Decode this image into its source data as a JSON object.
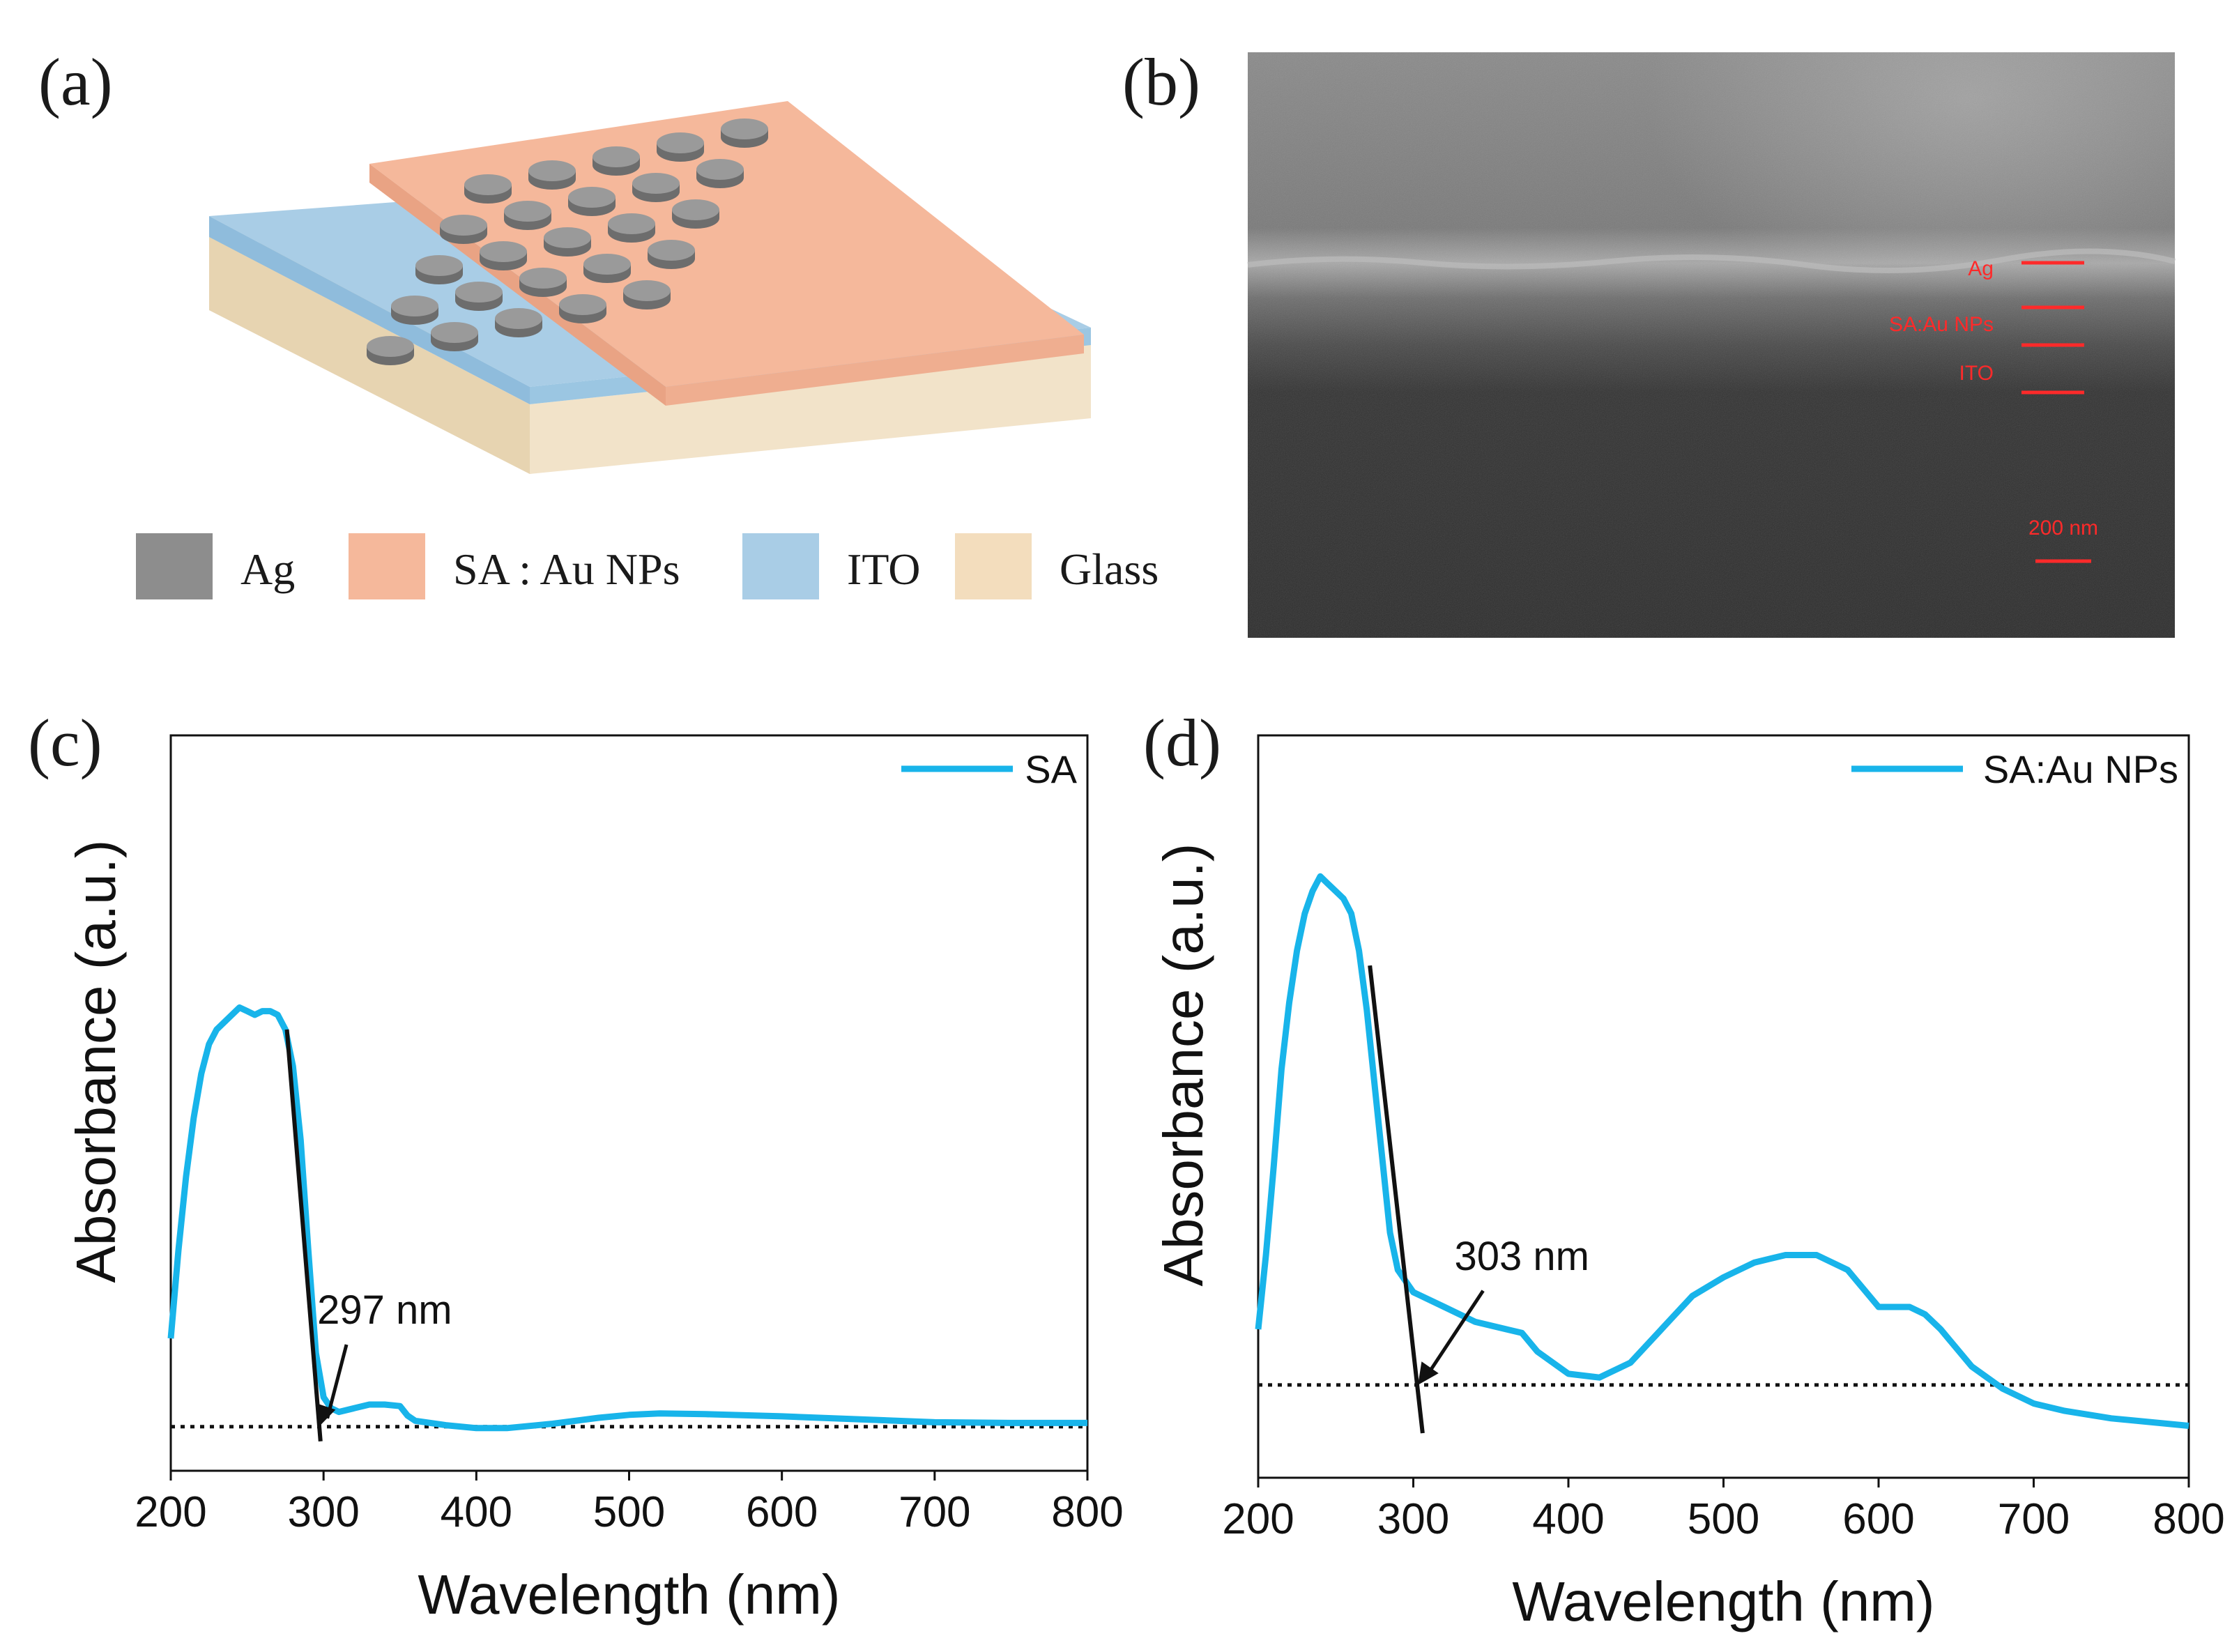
{
  "panels": {
    "a": {
      "label": "(a)",
      "legend": [
        {
          "name": "Ag",
          "color": "#8d8d8d"
        },
        {
          "name": "SA : Au NPs",
          "color": "#f5b89b"
        },
        {
          "name": "ITO",
          "color": "#a9cde6"
        },
        {
          "name": "Glass",
          "color": "#f3ddbd"
        }
      ]
    },
    "b": {
      "label": "(b)",
      "layers": [
        "Ag",
        "SA:Au NPs",
        "ITO"
      ],
      "scale_bar": "200 nm"
    },
    "c": {
      "label": "(c)"
    },
    "d": {
      "label": "(d)"
    }
  },
  "colors": {
    "series": "#18b4ea",
    "annotation": "#111111"
  },
  "chart_data": [
    {
      "type": "line",
      "panel": "c",
      "title": "",
      "xlabel": "Wavelength (nm)",
      "ylabel": "Absorbance (a.u.)",
      "xlim": [
        200,
        800
      ],
      "ylim": [
        0,
        1
      ],
      "xticks": [
        "200",
        "300",
        "400",
        "500",
        "600",
        "700",
        "800"
      ],
      "legend": "SA",
      "series": [
        {
          "name": "SA",
          "x": [
            200,
            205,
            210,
            215,
            220,
            225,
            230,
            235,
            240,
            245,
            250,
            255,
            260,
            265,
            270,
            275,
            280,
            285,
            290,
            295,
            300,
            305,
            310,
            320,
            330,
            340,
            350,
            355,
            360,
            380,
            400,
            420,
            450,
            480,
            500,
            520,
            550,
            600,
            650,
            700,
            750,
            800
          ],
          "y": [
            0.18,
            0.3,
            0.4,
            0.48,
            0.54,
            0.58,
            0.6,
            0.61,
            0.62,
            0.63,
            0.625,
            0.62,
            0.625,
            0.625,
            0.62,
            0.6,
            0.55,
            0.45,
            0.3,
            0.16,
            0.1,
            0.085,
            0.08,
            0.085,
            0.09,
            0.09,
            0.088,
            0.075,
            0.068,
            0.062,
            0.058,
            0.058,
            0.064,
            0.072,
            0.076,
            0.078,
            0.077,
            0.074,
            0.07,
            0.066,
            0.065,
            0.065
          ]
        }
      ],
      "baseline_y": 0.06,
      "tangent": {
        "x": [
          276,
          298
        ],
        "y": [
          0.6,
          0.04
        ]
      },
      "annotation": {
        "text": "297 nm",
        "x": 297,
        "y": 0.06,
        "text_x": 340,
        "text_y": 0.2
      }
    },
    {
      "type": "line",
      "panel": "d",
      "title": "",
      "xlabel": "Wavelength (nm)",
      "ylabel": "Absorbance (a.u.)",
      "xlim": [
        200,
        800
      ],
      "ylim": [
        0,
        1
      ],
      "xticks": [
        "200",
        "300",
        "400",
        "500",
        "600",
        "700",
        "800"
      ],
      "legend": "SA:Au NPs",
      "series": [
        {
          "name": "SA:Au NPs",
          "x": [
            200,
            205,
            210,
            215,
            220,
            225,
            230,
            235,
            240,
            245,
            250,
            255,
            260,
            265,
            270,
            275,
            280,
            285,
            290,
            300,
            320,
            340,
            360,
            370,
            380,
            400,
            420,
            440,
            460,
            480,
            500,
            520,
            540,
            560,
            580,
            600,
            620,
            630,
            640,
            660,
            680,
            700,
            720,
            750,
            800
          ],
          "y": [
            0.2,
            0.3,
            0.42,
            0.55,
            0.64,
            0.71,
            0.76,
            0.79,
            0.81,
            0.8,
            0.79,
            0.78,
            0.76,
            0.71,
            0.63,
            0.53,
            0.43,
            0.33,
            0.28,
            0.25,
            0.23,
            0.21,
            0.2,
            0.195,
            0.17,
            0.14,
            0.135,
            0.155,
            0.2,
            0.245,
            0.27,
            0.29,
            0.3,
            0.3,
            0.28,
            0.23,
            0.23,
            0.22,
            0.2,
            0.15,
            0.12,
            0.1,
            0.09,
            0.08,
            0.07
          ]
        }
      ],
      "baseline_y": 0.125,
      "tangent": {
        "x": [
          272,
          306
        ],
        "y": [
          0.69,
          0.06
        ]
      },
      "annotation": {
        "text": "303 nm",
        "x": 303,
        "y": 0.125,
        "text_x": 370,
        "text_y": 0.28
      }
    }
  ]
}
